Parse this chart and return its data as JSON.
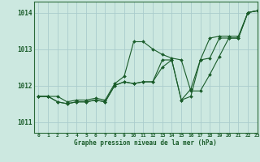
{
  "title": "Graphe pression niveau de la mer (hPa)",
  "bg_color": "#cce8e0",
  "grid_color": "#aacccc",
  "line_color": "#1a5c2a",
  "marker_color": "#1a5c2a",
  "xlim": [
    -0.5,
    23
  ],
  "ylim": [
    1010.7,
    1014.3
  ],
  "yticks": [
    1011,
    1012,
    1013,
    1014
  ],
  "xticks": [
    0,
    1,
    2,
    3,
    4,
    5,
    6,
    7,
    8,
    9,
    10,
    11,
    12,
    13,
    14,
    15,
    16,
    17,
    18,
    19,
    20,
    21,
    22,
    23
  ],
  "series": [
    {
      "x": [
        0,
        1,
        2,
        3,
        4,
        5,
        6,
        7,
        8,
        9,
        10,
        11,
        12,
        13,
        14,
        15,
        16,
        17,
        18,
        19,
        20,
        21,
        22,
        23
      ],
      "y": [
        1011.7,
        1011.7,
        1011.7,
        1011.55,
        1011.6,
        1011.6,
        1011.65,
        1011.6,
        1012.05,
        1012.25,
        1013.2,
        1013.2,
        1013.0,
        1012.85,
        1012.75,
        1012.7,
        1011.85,
        1011.85,
        1012.3,
        1012.8,
        1013.3,
        1013.3,
        1014.0,
        1014.05
      ]
    },
    {
      "x": [
        0,
        1,
        2,
        3,
        4,
        5,
        6,
        7,
        8,
        9,
        10,
        11,
        12,
        13,
        14,
        15,
        16,
        17,
        18,
        19,
        20,
        21,
        22,
        23
      ],
      "y": [
        1011.7,
        1011.7,
        1011.55,
        1011.5,
        1011.55,
        1011.55,
        1011.6,
        1011.55,
        1012.0,
        1012.1,
        1012.05,
        1012.1,
        1012.1,
        1012.5,
        1012.7,
        1011.6,
        1011.7,
        1012.7,
        1012.75,
        1013.3,
        1013.3,
        1013.3,
        1014.0,
        1014.05
      ]
    },
    {
      "x": [
        0,
        1,
        2,
        3,
        4,
        5,
        6,
        7,
        8,
        9,
        10,
        11,
        12,
        13,
        14,
        15,
        16,
        17,
        18,
        19,
        20,
        21,
        22,
        23
      ],
      "y": [
        1011.7,
        1011.7,
        1011.55,
        1011.5,
        1011.55,
        1011.55,
        1011.6,
        1011.55,
        1012.0,
        1012.1,
        1012.05,
        1012.1,
        1012.1,
        1012.7,
        1012.7,
        1011.6,
        1011.9,
        1012.7,
        1013.3,
        1013.35,
        1013.35,
        1013.35,
        1014.0,
        1014.05
      ]
    }
  ]
}
